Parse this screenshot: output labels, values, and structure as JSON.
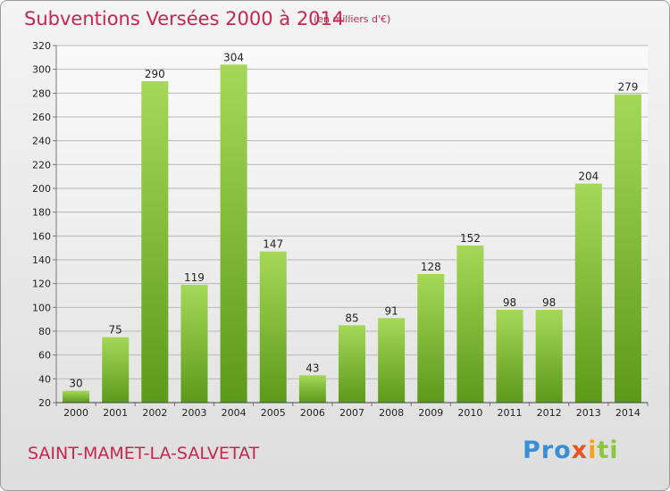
{
  "header": {
    "title": "Subventions Versées 2000 à 2014",
    "subtitle": "(en milliers d'€)"
  },
  "footer": {
    "commune": "SAINT-MAMET-LA-SALVETAT",
    "brand": [
      "Pro",
      "x",
      "i",
      "ti"
    ]
  },
  "colors": {
    "accent_text": "#c8254f",
    "bar_light": "#a6d858",
    "bar_dark": "#5c9a1a",
    "plot_bg_top": "#fafafa",
    "plot_bg_bottom": "#e4e4e4"
  },
  "chart_data": {
    "type": "bar",
    "title": "Subventions Versées 2000 à 2014",
    "subtitle": "(en milliers d'€)",
    "categories": [
      "2000",
      "2001",
      "2002",
      "2003",
      "2004",
      "2005",
      "2006",
      "2007",
      "2008",
      "2009",
      "2010",
      "2011",
      "2012",
      "2013",
      "2014"
    ],
    "values": [
      30,
      75,
      290,
      119,
      304,
      147,
      43,
      85,
      91,
      128,
      152,
      98,
      98,
      204,
      279
    ],
    "ylim": [
      20,
      320
    ],
    "yticks": [
      20,
      40,
      60,
      80,
      100,
      120,
      140,
      160,
      180,
      200,
      220,
      240,
      260,
      280,
      300,
      320
    ],
    "grid": true,
    "data_labels": true,
    "xlabel": "",
    "ylabel": ""
  }
}
